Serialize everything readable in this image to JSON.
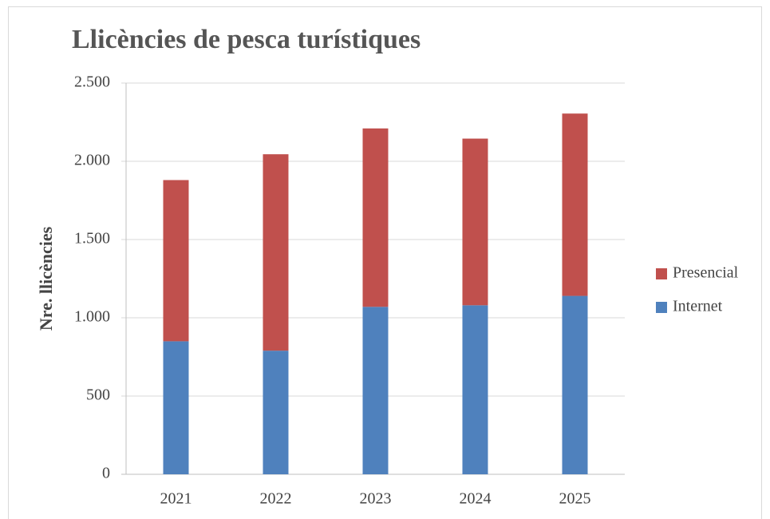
{
  "chart_data": {
    "type": "stacked_bar",
    "title": "Llicències de pesca turístiques",
    "y_label": "Nre. llicències",
    "categories": [
      "2021",
      "2022",
      "2023",
      "2024",
      "2025"
    ],
    "series": [
      {
        "name": "Internet",
        "color": "#4f81bd",
        "values": [
          850,
          790,
          1070,
          1080,
          1140
        ]
      },
      {
        "name": "Presencial",
        "color": "#c0504d",
        "values": [
          1030,
          1255,
          1140,
          1065,
          1165
        ]
      }
    ],
    "ylim": [
      0,
      2500
    ],
    "yticks": [
      0,
      500,
      {
        "value": 1000,
        "label": "1.000"
      },
      {
        "value": 1500,
        "label": "1.500"
      },
      {
        "value": 2000,
        "label": "2.000"
      },
      {
        "value": 2500,
        "label": "2.500"
      }
    ],
    "grid": true,
    "legend": "right"
  }
}
